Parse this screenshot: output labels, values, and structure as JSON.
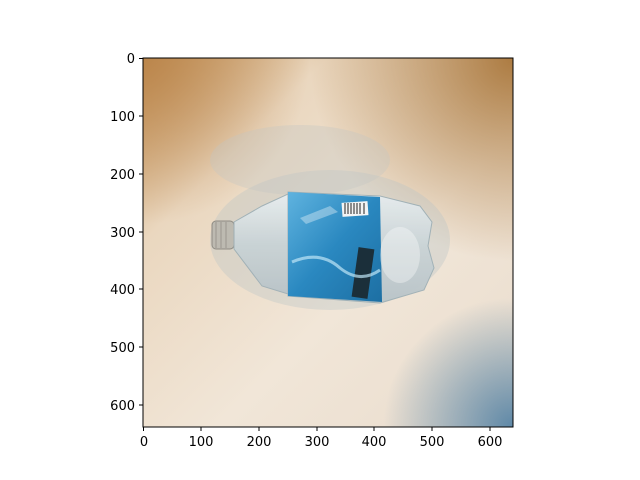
{
  "image": {
    "subject": "crumpled plastic water bottle with blue label lying on a beige surface",
    "palette": {
      "surface_light": "#f1e7da",
      "surface_warm": "#d9a565",
      "surface_corner": "#a8783e",
      "shadow_blue": "#5c86a4",
      "label_blue": "#2f8fc4",
      "cap_gray": "#b8b6ae"
    }
  },
  "axes": {
    "x_ticks": [
      "0",
      "100",
      "200",
      "300",
      "400",
      "500",
      "600"
    ],
    "y_ticks": [
      "0",
      "100",
      "200",
      "300",
      "400",
      "500",
      "600"
    ],
    "xlim": [
      0,
      640
    ],
    "ylim": [
      640,
      0
    ]
  }
}
